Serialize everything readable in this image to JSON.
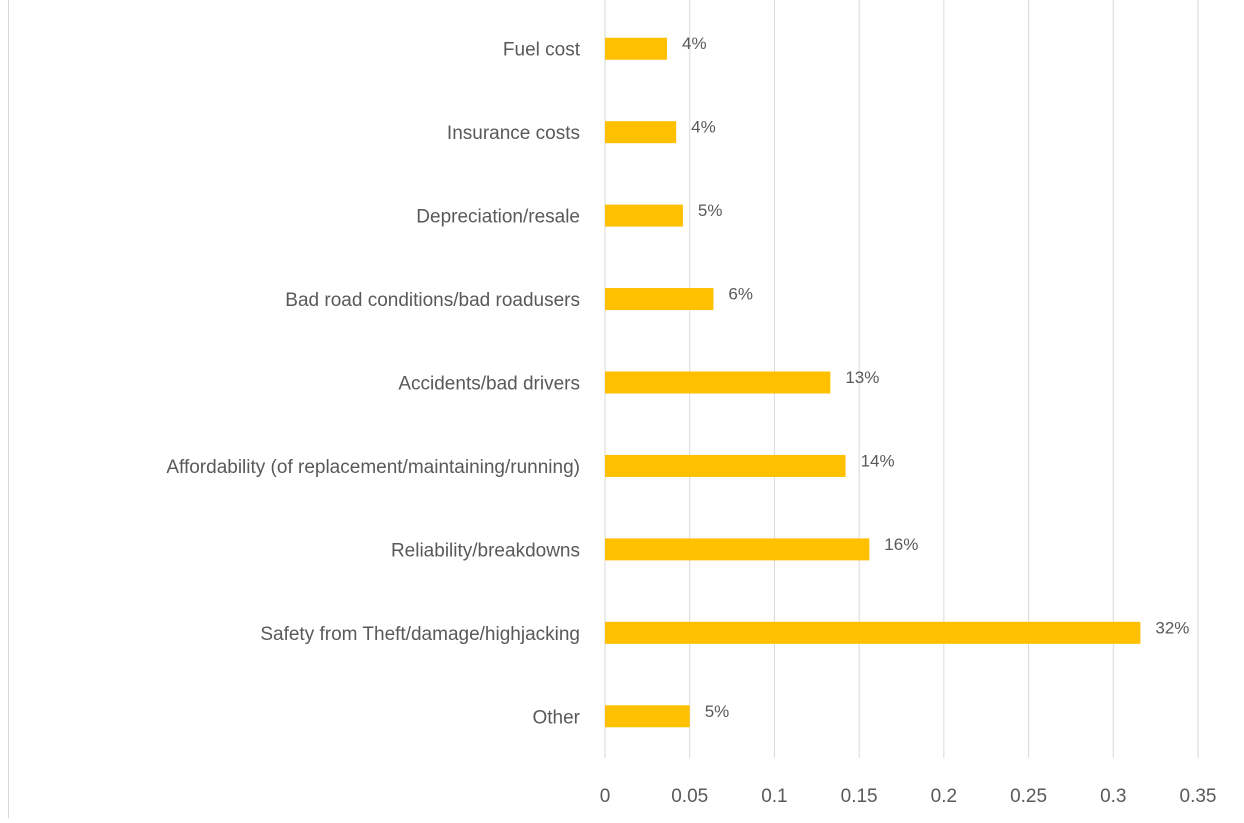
{
  "chart_data": {
    "type": "bar",
    "orientation": "horizontal",
    "categories": [
      "Fuel cost",
      "Insurance costs",
      "Depreciation/resale",
      "Bad road conditions/bad roadusers",
      "Accidents/bad drivers",
      "Affordability (of replacement/maintaining/running)",
      "Reliability/breakdowns",
      "Safety from Theft/damage/highjacking",
      "Other"
    ],
    "values": [
      0.0366,
      0.042,
      0.046,
      0.064,
      0.133,
      0.142,
      0.156,
      0.316,
      0.05
    ],
    "value_labels": [
      "4%",
      "4%",
      "5%",
      "6%",
      "13%",
      "14%",
      "16%",
      "32%",
      "5%"
    ],
    "color": "#ffc000",
    "xlim": [
      0,
      0.35
    ],
    "xticks": [
      0,
      0.05,
      0.1,
      0.15,
      0.2,
      0.25,
      0.3,
      0.35
    ],
    "grid": true
  }
}
